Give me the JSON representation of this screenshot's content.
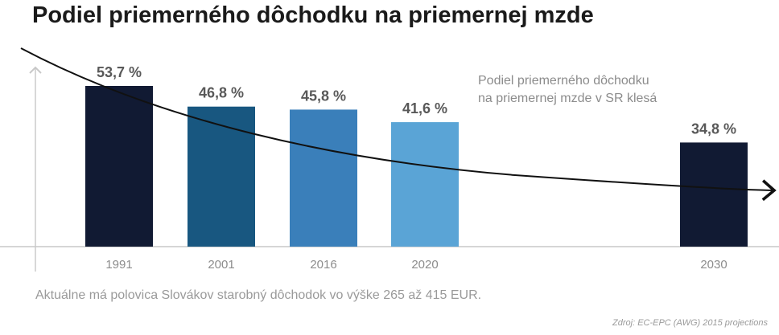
{
  "title": "Podiel priemerného dôchodku na priemernej mzde",
  "annotation": {
    "line1": "Podiel priemerného dôchodku",
    "line2": "na priemernej mzde v SR klesá"
  },
  "footnote": "Aktuálne má polovica Slovákov starobný dôchodok vo výške 265 až 415 EUR.",
  "source": "Zdroj: EC-EPC (AWG) 2015 projections",
  "colors": {
    "bars": [
      "#111a33",
      "#185780",
      "#3a7fba",
      "#5aa4d6",
      "#111a33"
    ],
    "label": "#595959",
    "tick": "#8c8c8c",
    "axis": "#c8c8c8",
    "trend": "#111111"
  },
  "chart_data": {
    "type": "bar",
    "title": "Podiel priemerného dôchodku na priemernej mzde",
    "categories": [
      "1991",
      "2001",
      "2016",
      "2020",
      "2030"
    ],
    "values": [
      53.7,
      46.8,
      45.8,
      41.6,
      34.8
    ],
    "value_labels": [
      "53,7 %",
      "46,8 %",
      "45,8 %",
      "41,6 %",
      "34,8 %"
    ],
    "ylim": [
      0,
      53.7
    ],
    "grid": false,
    "trend_line": "decreasing curve with arrow to the right"
  }
}
